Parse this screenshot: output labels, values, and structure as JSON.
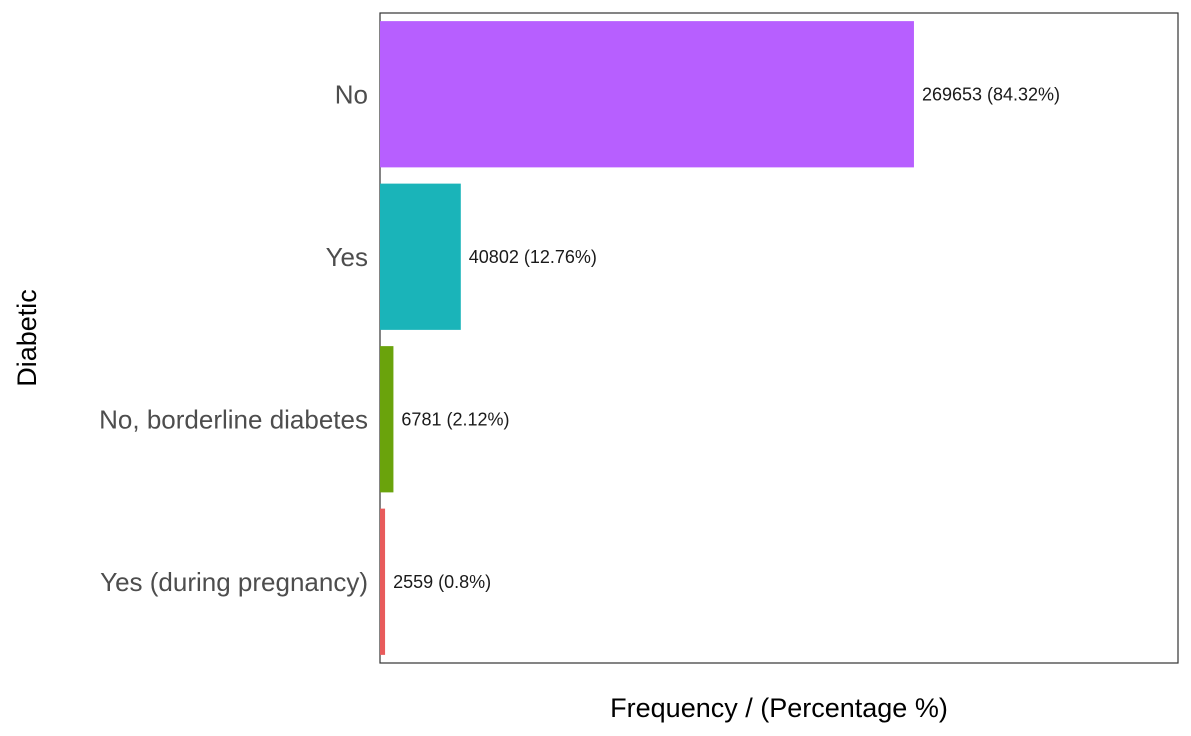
{
  "chart_data": {
    "type": "bar",
    "orientation": "horizontal",
    "categories": [
      "No",
      "Yes",
      "No, borderline diabetes",
      "Yes (during pregnancy)"
    ],
    "values": [
      269653,
      40802,
      6781,
      2559
    ],
    "data_labels": [
      "269653 (84.32%)",
      "40802 (12.76%)",
      "6781 (2.12%)",
      "2559 (0.8%)"
    ],
    "colors": [
      "#B75FFF",
      "#1AB4B9",
      "#6AA30C",
      "#E85B5B"
    ],
    "xlabel": "Frequency / (Percentage %)",
    "ylabel": "Diabetic",
    "xlim": [
      0,
      403000
    ],
    "grid": false,
    "legend": "none"
  }
}
